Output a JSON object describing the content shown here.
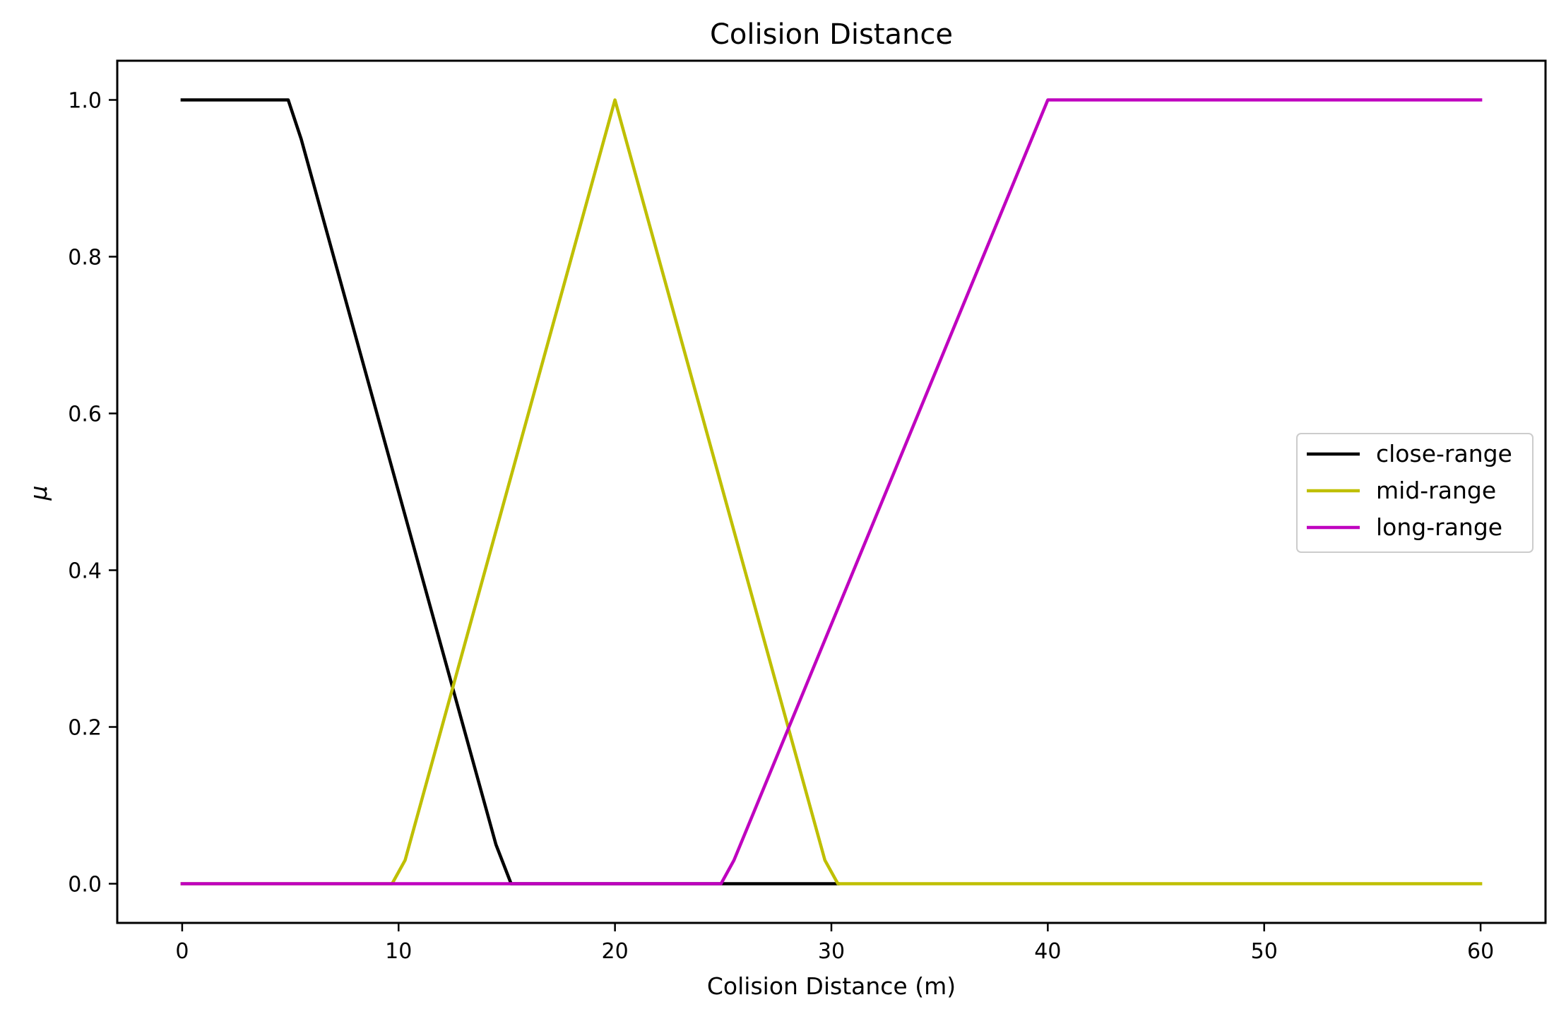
{
  "chart_data": {
    "type": "line",
    "title": "Colision Distance",
    "xlabel": "Colision Distance (m)",
    "ylabel": "μ",
    "xlim": [
      -3,
      63
    ],
    "ylim": [
      -0.05,
      1.05
    ],
    "xticks": [
      0,
      10,
      20,
      30,
      40,
      50,
      60
    ],
    "yticks": [
      0.0,
      0.2,
      0.4,
      0.6,
      0.8,
      1.0
    ],
    "xtick_labels": [
      "0",
      "10",
      "20",
      "30",
      "40",
      "50",
      "60"
    ],
    "ytick_labels": [
      "0.0",
      "0.2",
      "0.4",
      "0.6",
      "0.8",
      "1.0"
    ],
    "grid": false,
    "legend_position": "center-right",
    "series": [
      {
        "name": "close-range",
        "color": "#000000",
        "x": [
          0,
          4.9,
          5.5,
          14.5,
          15.2,
          30.3
        ],
        "y": [
          1.0,
          1.0,
          0.95,
          0.05,
          0.0,
          0.0
        ]
      },
      {
        "name": "mid-range",
        "color": "#bfbf00",
        "x": [
          0,
          9.7,
          10.3,
          20,
          29.7,
          30.3,
          60
        ],
        "y": [
          0.0,
          0.0,
          0.03,
          1.0,
          0.03,
          0.0,
          0.0
        ]
      },
      {
        "name": "long-range",
        "color": "#bf00bf",
        "x": [
          0,
          24.9,
          25.5,
          40,
          60
        ],
        "y": [
          0.0,
          0.0,
          0.03,
          1.0,
          1.0
        ]
      }
    ]
  }
}
